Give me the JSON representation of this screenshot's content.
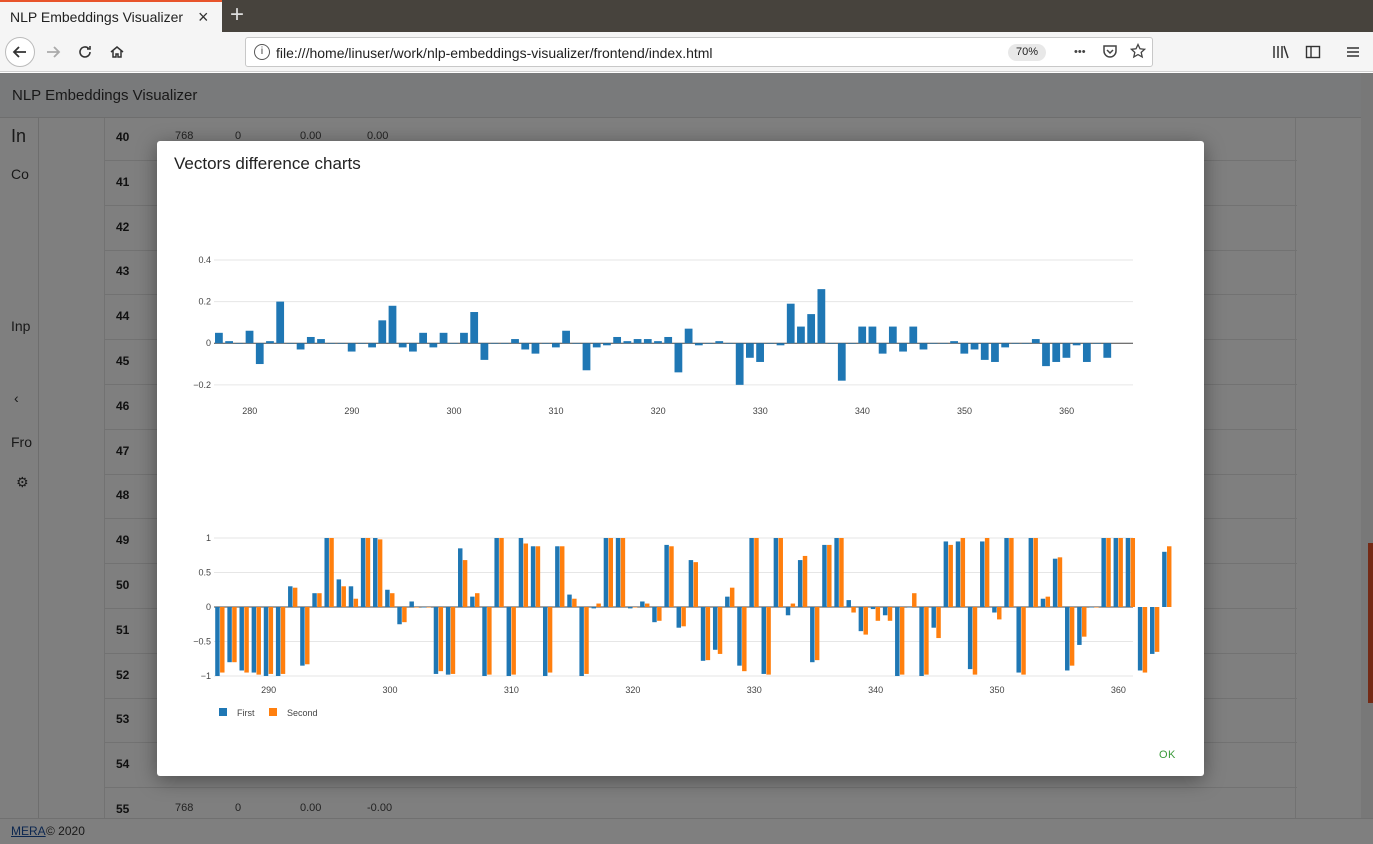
{
  "browser": {
    "tab_title": "NLP Embeddings Visualizer",
    "tab_close": "×",
    "new_tab": "+",
    "url": "file:///home/linuser/work/nlp-embeddings-visualizer/frontend/index.html",
    "zoom": "70%",
    "info_icon": "i",
    "more_icon": "•••"
  },
  "app": {
    "title": "NLP Embeddings Visualizer",
    "sidebar_items": [
      "In",
      "Co",
      "Inp",
      "Fro"
    ],
    "rows": [
      {
        "num": "40",
        "dim": "768",
        "zero": "0",
        "a": "0.00",
        "b": "0.00"
      },
      {
        "num": "41"
      },
      {
        "num": "42"
      },
      {
        "num": "43"
      },
      {
        "num": "44"
      },
      {
        "num": "45"
      },
      {
        "num": "46"
      },
      {
        "num": "47"
      },
      {
        "num": "48"
      },
      {
        "num": "49"
      },
      {
        "num": "50"
      },
      {
        "num": "51"
      },
      {
        "num": "52"
      },
      {
        "num": "53"
      },
      {
        "num": "54"
      },
      {
        "num": "55",
        "dim": "768",
        "zero": "0",
        "a": "0.00",
        "b": "-0.00"
      }
    ],
    "footer_link": "MERA",
    "footer_text": "© 2020"
  },
  "modal": {
    "title": "Vectors difference charts",
    "ok_label": "OK"
  },
  "colors": {
    "first": "#1f77b4",
    "second": "#ff7f0e"
  },
  "chart_data": [
    {
      "type": "bar",
      "x_start": 277,
      "y_ticks": [
        0.4,
        0.2,
        0,
        -0.2
      ],
      "y_tick_labels": [
        "0.4",
        "0.2",
        "0",
        "−0.2"
      ],
      "x_ticks": [
        280,
        290,
        300,
        310,
        320,
        330,
        340,
        350,
        360
      ],
      "ylim": [
        -0.22,
        0.4
      ],
      "xlim": [
        276.5,
        366.5
      ],
      "series": [
        {
          "values": [
            0.05,
            0.01,
            0.0,
            0.06,
            -0.1,
            0.01,
            0.2,
            0.0,
            -0.03,
            0.03,
            0.02,
            0.0,
            0.0,
            -0.04,
            0.0,
            -0.02,
            0.11,
            0.18,
            -0.02,
            -0.04,
            0.05,
            -0.02,
            0.05,
            0.0,
            0.05,
            0.15,
            -0.08,
            0.0,
            0.0,
            0.02,
            -0.03,
            -0.05,
            0.0,
            -0.02,
            0.06,
            0.0,
            -0.13,
            -0.02,
            -0.01,
            0.03,
            0.01,
            0.02,
            0.02,
            0.01,
            0.03,
            -0.14,
            0.07,
            -0.01,
            0.0,
            0.01,
            0.0,
            -0.2,
            -0.07,
            -0.09,
            0.0,
            -0.01,
            0.19,
            0.08,
            0.14,
            0.26,
            0.0,
            -0.18,
            0.0,
            0.08,
            0.08,
            -0.05,
            0.08,
            -0.04,
            0.08,
            -0.03,
            0.0,
            0.0,
            0.01,
            -0.05,
            -0.03,
            -0.08,
            -0.09,
            -0.02,
            0.0,
            0.0,
            0.02,
            -0.11,
            -0.09,
            -0.07,
            -0.01,
            -0.09,
            0.0,
            -0.07
          ]
        }
      ]
    },
    {
      "type": "bar",
      "x_start": 286,
      "y_ticks": [
        1,
        0.5,
        0,
        -0.5,
        -1
      ],
      "y_tick_labels": [
        "1",
        "0.5",
        "0",
        "−0.5",
        "−1"
      ],
      "x_ticks": [
        290,
        300,
        310,
        320,
        330,
        340,
        350,
        360
      ],
      "ylim": [
        -1,
        1
      ],
      "xlim": [
        285.5,
        361.2
      ],
      "legend": "bottom-left",
      "series": [
        {
          "name": "First",
          "values": [
            -1.0,
            -0.8,
            -0.92,
            -0.95,
            -1.0,
            -1.0,
            0.3,
            -0.85,
            0.2,
            1.0,
            0.4,
            0.3,
            1.0,
            1.0,
            0.25,
            -0.25,
            0.08,
            0.0,
            -0.97,
            -0.98,
            0.85,
            0.15,
            -1.0,
            1.0,
            -1.0,
            1.0,
            0.88,
            -1.0,
            0.88,
            0.18,
            -1.0,
            -0.02,
            1.0,
            1.0,
            -0.02,
            0.08,
            -0.22,
            0.9,
            -0.3,
            0.68,
            -0.78,
            -0.62,
            0.15,
            -0.85,
            1.0,
            -0.97,
            1.0,
            -0.12,
            0.68,
            -0.8,
            0.9,
            1.0,
            0.1,
            -0.35,
            -0.03,
            -0.12,
            -1.0,
            0.0,
            -1.0,
            -0.3,
            0.95,
            0.95,
            -0.9,
            0.95,
            -0.08,
            1.0,
            -0.95,
            1.0,
            0.12,
            0.7,
            -0.92,
            -0.55,
            0.0,
            1.0,
            1.0,
            1.0,
            -0.92,
            -0.68,
            0.8
          ]
        },
        {
          "name": "Second",
          "values": [
            -0.95,
            -0.8,
            -0.95,
            -0.98,
            -0.97,
            -0.97,
            0.28,
            -0.83,
            0.2,
            1.0,
            0.3,
            0.12,
            1.0,
            0.98,
            0.2,
            -0.22,
            0.0,
            0.0,
            -0.93,
            -0.97,
            0.68,
            0.2,
            -0.98,
            1.0,
            -0.98,
            0.92,
            0.88,
            -0.95,
            0.88,
            0.12,
            -0.97,
            0.05,
            1.0,
            1.0,
            0.0,
            0.05,
            -0.2,
            0.88,
            -0.28,
            0.65,
            -0.77,
            -0.68,
            0.28,
            -0.93,
            1.0,
            -0.98,
            1.0,
            0.05,
            0.74,
            -0.77,
            0.9,
            1.0,
            -0.08,
            -0.4,
            -0.2,
            -0.2,
            -0.98,
            0.2,
            -0.98,
            -0.45,
            0.9,
            1.0,
            -0.98,
            1.0,
            -0.18,
            1.0,
            -0.98,
            1.0,
            0.15,
            0.72,
            -0.85,
            -0.43,
            0.0,
            1.0,
            1.0,
            1.0,
            -0.95,
            -0.65,
            0.88
          ]
        }
      ]
    }
  ]
}
